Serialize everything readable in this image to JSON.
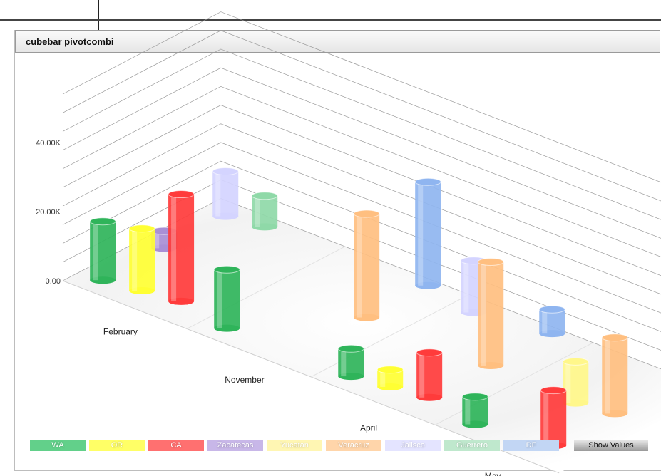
{
  "panel": {
    "title": "cubebar pivotcombi"
  },
  "chart_data": {
    "type": "bar",
    "ylim": [
      0,
      40000
    ],
    "y_ticks": [
      "0.00",
      "20.00K",
      "40.00K"
    ],
    "categories": [
      "February",
      "November",
      "April",
      "May"
    ],
    "series": [
      {
        "name": "WA",
        "color": "#2fb45a",
        "values": [
          17000,
          17000,
          8000,
          8000
        ]
      },
      {
        "name": "OR",
        "color": "#ffff33",
        "values": [
          18000,
          0,
          5000,
          0
        ]
      },
      {
        "name": "CA",
        "color": "#ff3b3b",
        "values": [
          31000,
          0,
          13000,
          16000
        ]
      },
      {
        "name": "Zacatecas",
        "color": "#a98fd6",
        "values": [
          5000,
          0,
          0,
          0
        ]
      },
      {
        "name": "Yucatan",
        "color": "#fff78a",
        "values": [
          0,
          0,
          0,
          12000
        ]
      },
      {
        "name": "Veracruz",
        "color": "#ffbf80",
        "values": [
          0,
          30000,
          30000,
          22000
        ]
      },
      {
        "name": "Jalisco",
        "color": "#d4d4ff",
        "values": [
          13000,
          0,
          15000,
          0
        ]
      },
      {
        "name": "Guerrero",
        "color": "#8fd9a8",
        "values": [
          9000,
          0,
          0,
          0
        ]
      },
      {
        "name": "DF",
        "color": "#8fb5f0",
        "values": [
          0,
          30000,
          7000,
          25000
        ]
      }
    ],
    "legend_position": "bottom",
    "grid": true
  },
  "legend": {
    "items": [
      {
        "label": "WA",
        "color": "#62d08a"
      },
      {
        "label": "OR",
        "color": "#ffff66"
      },
      {
        "label": "CA",
        "color": "#ff7070"
      },
      {
        "label": "Zacatecas",
        "color": "#c8b7e8"
      },
      {
        "label": "Yucatan",
        "color": "#fff6b3"
      },
      {
        "label": "Veracruz",
        "color": "#ffd5aa"
      },
      {
        "label": "Jalisco",
        "color": "#e4e4ff"
      },
      {
        "label": "Guerrero",
        "color": "#bfe8cd"
      },
      {
        "label": "DF",
        "color": "#c2d6f4"
      }
    ],
    "show_values_label": "Show Values"
  }
}
